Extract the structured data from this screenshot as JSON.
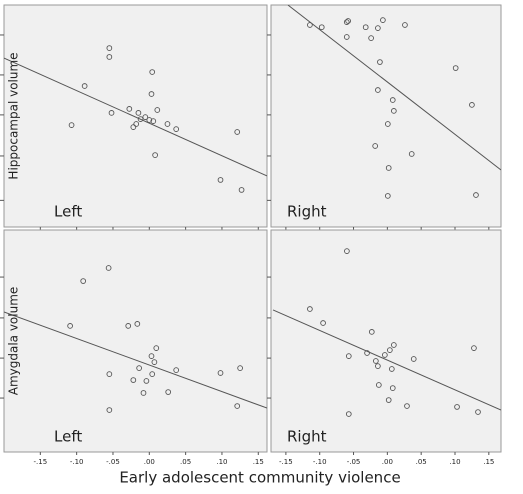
{
  "xlabel": "Early adolescent community violence",
  "chart_data": [
    {
      "type": "scatter",
      "ylabel": "Hippocampal volume",
      "panel_label": "Left",
      "color": "#555555",
      "x": [
        -0.055,
        -0.055,
        -0.089,
        -0.107,
        -0.052,
        -0.0275,
        -0.015,
        -0.022,
        -0.018,
        -0.012,
        -0.0055,
        0,
        0.004,
        0.003,
        0.0055,
        0.011,
        0.025,
        0.037,
        0.008,
        0.121,
        0.098,
        0.127
      ],
      "values": [
        8.06,
        7.66,
        6.35,
        4.59,
        5.14,
        5.32,
        5.14,
        4.5,
        4.64,
        4.86,
        4.95,
        4.82,
        6.98,
        5.99,
        4.77,
        5.27,
        4.64,
        4.41,
        3.24,
        4.28,
        2.12,
        1.67
      ],
      "fit": {
        "x": [
          -0.2,
          0.162
        ],
        "values": [
          7.61,
          2.3
        ]
      },
      "xlim": [
        -0.2,
        0.162
      ],
      "ylim": [
        0,
        10
      ],
      "xticks": [
        -0.15,
        -0.1,
        -0.05,
        0,
        0.05,
        0.1,
        0.15
      ],
      "yticks": [
        1.2,
        3.2,
        5.05,
        6.85,
        8.65
      ]
    },
    {
      "type": "scatter",
      "panel_label": "Right",
      "color": "#555555",
      "x": [
        -0.1145,
        -0.097,
        -0.058,
        -0.06,
        -0.06,
        -0.032,
        -0.024,
        -0.014,
        -0.0066,
        0.026,
        -0.011,
        -0.014,
        0.008,
        0.0096,
        0.0007,
        -0.018,
        0.036,
        0.002,
        0.0007,
        0.101,
        0.125,
        0.131
      ],
      "values": [
        9.1,
        9.0,
        9.28,
        9.23,
        8.56,
        9.0,
        8.51,
        8.96,
        9.32,
        9.1,
        7.43,
        6.17,
        5.72,
        5.23,
        4.64,
        3.65,
        3.29,
        2.66,
        1.4,
        7.16,
        5.5,
        1.44
      ],
      "fit": {
        "x": [
          -0.147,
          0.168
        ],
        "values": [
          10,
          2.57
        ]
      },
      "xlim": [
        -0.172,
        0.168
      ],
      "ylim": [
        0,
        10
      ],
      "xticks": [
        -0.15,
        -0.1,
        -0.05,
        0,
        0.05,
        0.1,
        0.15
      ],
      "yticks": [
        1.2,
        3.2,
        5.05,
        6.85,
        8.65
      ]
    },
    {
      "type": "scatter",
      "ylabel": "Amygdala volume",
      "panel_label": "Left",
      "color": "#555555",
      "x": [
        -0.056,
        -0.091,
        -0.109,
        -0.029,
        -0.0165,
        -0.055,
        -0.055,
        -0.022,
        -0.014,
        -0.004,
        -0.008,
        0.003,
        0.004,
        0.007,
        0.0096,
        0.026,
        0.037,
        0.098,
        0.125,
        0.121
      ],
      "values": [
        8.29,
        7.7,
        5.68,
        5.68,
        5.77,
        3.51,
        1.89,
        3.24,
        3.78,
        3.2,
        2.66,
        4.32,
        3.51,
        4.05,
        4.68,
        2.7,
        3.69,
        3.56,
        3.78,
        2.07
      ],
      "fit": {
        "x": [
          -0.2,
          0.162
        ],
        "values": [
          6.31,
          1.98
        ]
      },
      "xlim": [
        -0.2,
        0.162
      ],
      "ylim": [
        0,
        10
      ],
      "xticks": [
        {
          "value": -0.15,
          "label": "-.15"
        },
        {
          "value": -0.1,
          "label": "-.10"
        },
        {
          "value": -0.05,
          "label": "-.05"
        },
        {
          "value": 0,
          "label": ".00"
        },
        {
          "value": 0.05,
          "label": ".05"
        },
        {
          "value": 0.1,
          "label": ".10"
        },
        {
          "value": 0.15,
          "label": ".15"
        }
      ],
      "yticks": [
        2.43,
        4.23,
        6.04,
        7.88
      ]
    },
    {
      "type": "scatter",
      "panel_label": "Right",
      "color": "#555555",
      "x": [
        -0.0598,
        -0.1145,
        -0.095,
        -0.023,
        -0.057,
        -0.03,
        -0.017,
        -0.014,
        -0.0037,
        0.0037,
        0.0096,
        -0.0126,
        0.0066,
        0.008,
        0.002,
        0.029,
        0.039,
        -0.057,
        0.103,
        0.128,
        0.134
      ],
      "values": [
        9.05,
        6.44,
        5.81,
        5.41,
        4.32,
        4.46,
        4.1,
        3.87,
        4.37,
        4.59,
        4.82,
        3.02,
        3.74,
        2.88,
        2.34,
        2.07,
        4.19,
        1.71,
        2.03,
        4.68,
        1.8
      ],
      "fit": {
        "x": [
          -0.169,
          0.168
        ],
        "values": [
          6.4,
          1.89
        ]
      },
      "xlim": [
        -0.172,
        0.168
      ],
      "ylim": [
        0,
        10
      ],
      "xticks": [
        {
          "value": -0.15,
          "label": "-.15"
        },
        {
          "value": -0.1,
          "label": "-.10"
        },
        {
          "value": -0.05,
          "label": "-.05"
        },
        {
          "value": 0,
          "label": ".00"
        },
        {
          "value": 0.05,
          "label": ".05"
        },
        {
          "value": 0.1,
          "label": ".10"
        },
        {
          "value": 0.15,
          "label": ".15"
        }
      ],
      "yticks": [
        2.43,
        4.23,
        6.04,
        7.88
      ]
    }
  ]
}
